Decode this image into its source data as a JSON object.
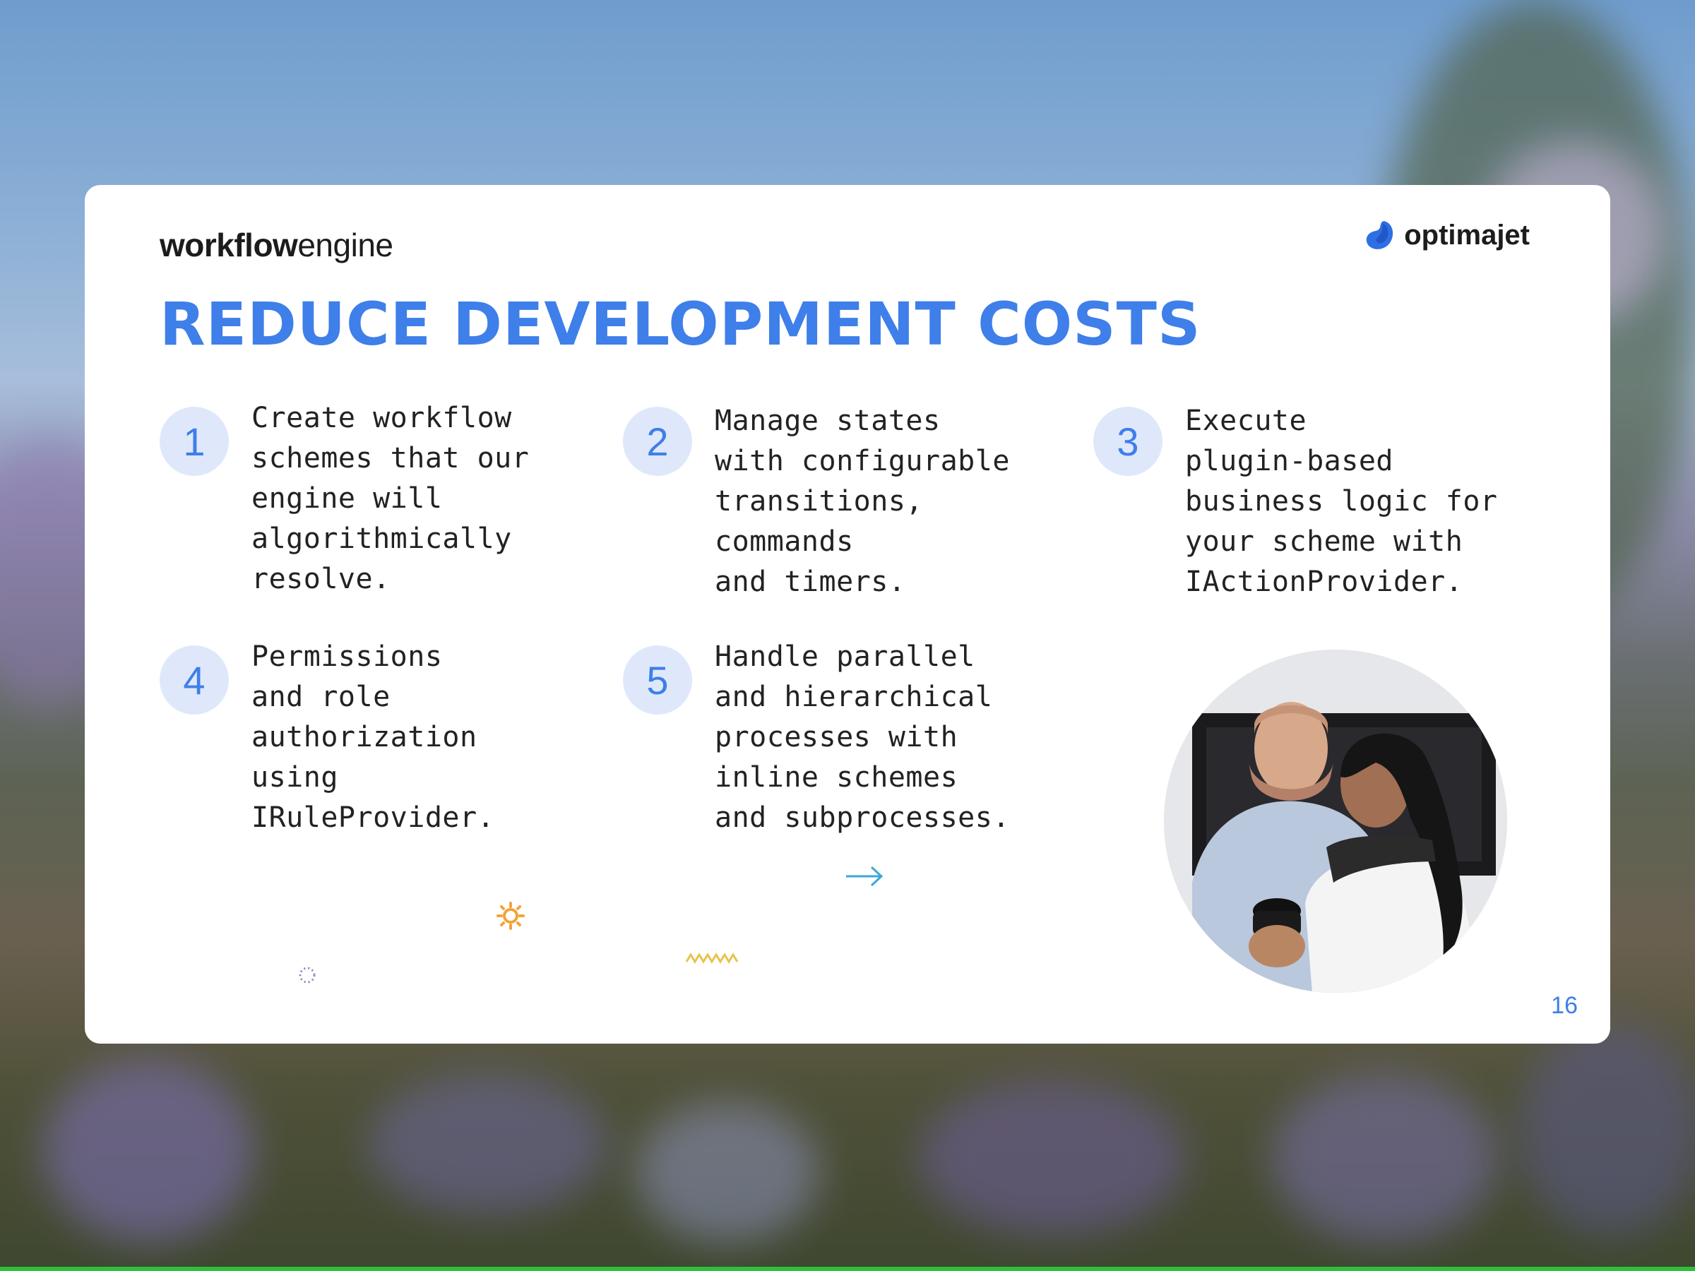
{
  "slide": {
    "brand_bold": "workflow",
    "brand_light": "engine",
    "logo_text": "optimajet",
    "title": "REDUCE DEVELOPMENT COSTS",
    "page_number": "16"
  },
  "items": [
    {
      "number": "1",
      "text": "Create workflow\nschemes that our\nengine will\nalgorithmically\nresolve."
    },
    {
      "number": "2",
      "text": "Manage states\nwith configurable\ntransitions,\ncommands\nand timers."
    },
    {
      "number": "3",
      "text": "Execute\nplugin-based\nbusiness logic for\nyour scheme with\nIActionProvider."
    },
    {
      "number": "4",
      "text": "Permissions\nand role\nauthorization\nusing\nIRuleProvider."
    },
    {
      "number": "5",
      "text": "Handle parallel\nand hierarchical\nprocesses with\ninline schemes\nand subprocesses."
    }
  ],
  "colors": {
    "accent": "#3e7fe9",
    "number_bg": "#dfe8fb",
    "deco_orange": "#f2a33a",
    "deco_yellow": "#e8c24a",
    "deco_cyan": "#3aa9d6",
    "deco_purple": "#8a7fbf"
  },
  "icons": {
    "logo": "optimajet-logo-icon",
    "arrow": "arrow-right-icon",
    "gear": "gear-icon",
    "zigzag": "zigzag-icon",
    "dotted_circle": "dotted-circle-icon"
  }
}
